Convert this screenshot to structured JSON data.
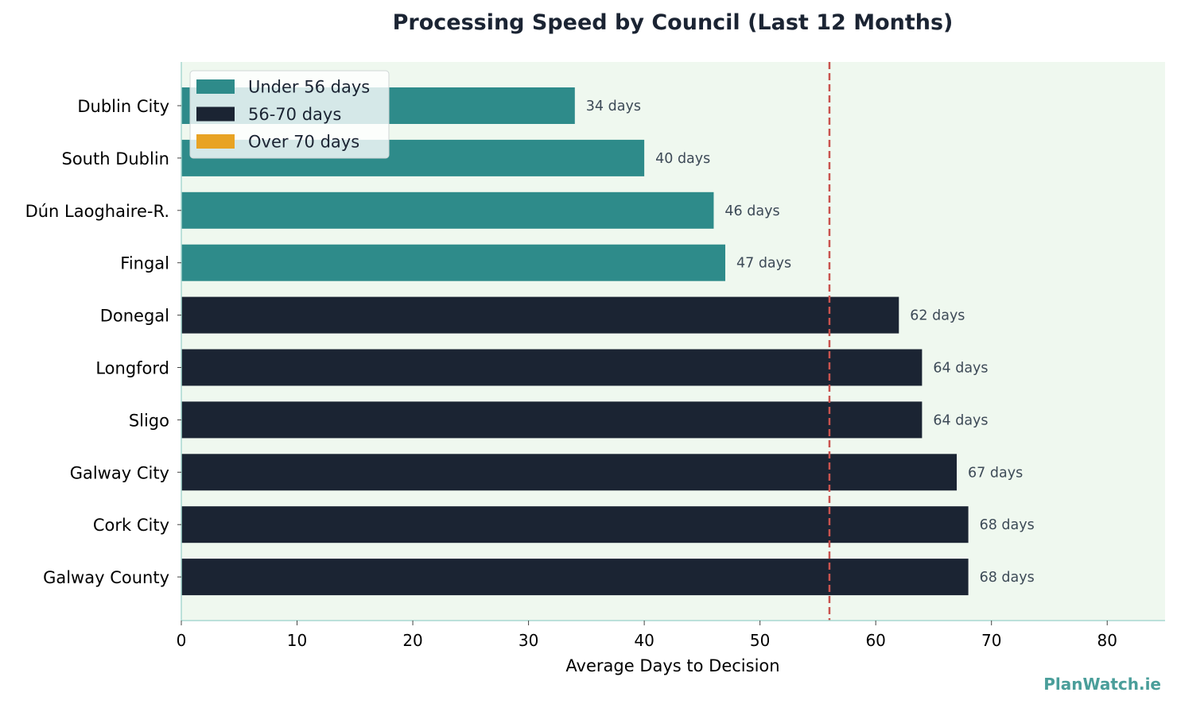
{
  "watermark": "PlanWatch.ie",
  "colors": {
    "under_56": "#2e8b8a",
    "range_56_70": "#1b2433",
    "over_70": "#e8a323",
    "plot_bg": "#eff8ef",
    "threshold_line": "#c9534f",
    "axis": "#a8d8d0"
  },
  "chart_data": {
    "type": "bar",
    "orientation": "horizontal",
    "title": "Processing Speed by Council (Last 12 Months)",
    "xlabel": "Average Days to Decision",
    "ylabel": "",
    "xlim": [
      0,
      85
    ],
    "xticks": [
      0,
      10,
      20,
      30,
      40,
      50,
      60,
      70,
      80
    ],
    "grid": false,
    "threshold": 56,
    "categories": [
      "Dublin City",
      "South Dublin",
      "Dún Laoghaire-R.",
      "Fingal",
      "Donegal",
      "Longford",
      "Sligo",
      "Galway City",
      "Cork City",
      "Galway County"
    ],
    "values": [
      34,
      40,
      46,
      47,
      62,
      64,
      64,
      67,
      68,
      68
    ],
    "data_labels": [
      "34 days",
      "40 days",
      "46 days",
      "47 days",
      "62 days",
      "64 days",
      "64 days",
      "67 days",
      "68 days",
      "68 days"
    ],
    "legend_position": "top-left",
    "legend": [
      {
        "label": "Under 56 days",
        "color": "#2e8b8a"
      },
      {
        "label": "56-70 days",
        "color": "#1b2433"
      },
      {
        "label": "Over 70 days",
        "color": "#e8a323"
      }
    ]
  }
}
